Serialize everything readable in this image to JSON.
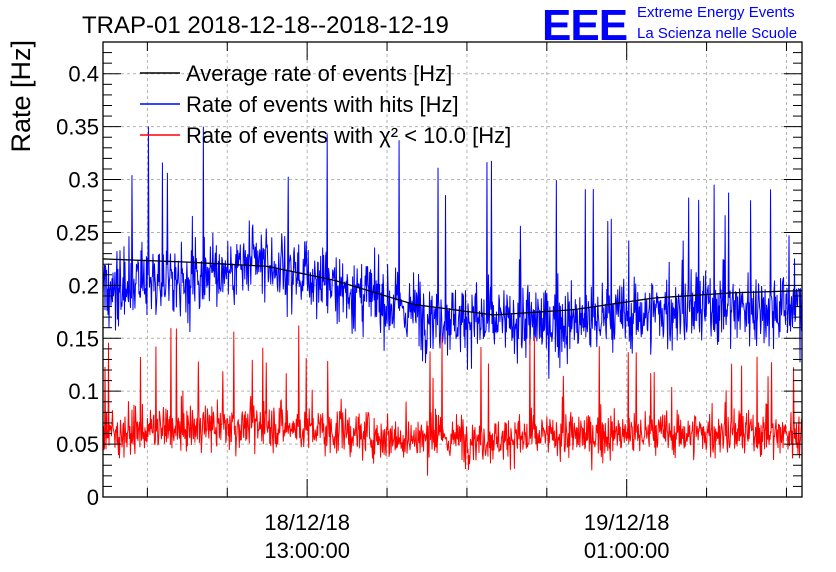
{
  "chart_data": {
    "type": "line",
    "title": "TRAP-01 2018-12-18--2018-12-19",
    "xlabel": "",
    "ylabel": "Rate [Hz]",
    "ylim": [
      0,
      0.43
    ],
    "grid": true,
    "legend_position": "top-left",
    "x_ticks": [
      {
        "date": "18/12/18",
        "time": "13:00:00"
      },
      {
        "date": "19/12/18",
        "time": "01:00:00"
      }
    ],
    "y_ticks": [
      "0",
      "0.05",
      "0.1",
      "0.15",
      "0.2",
      "0.25",
      "0.3",
      "0.35",
      "0.4"
    ],
    "x_range": [
      "2018-12-18 05:20",
      "2018-12-19 07:35"
    ],
    "series": [
      {
        "name": "Average rate of events [Hz]",
        "color": "#000000",
        "x": [
          "2018-12-18 05:20",
          "2018-12-18 08:30",
          "2018-12-18 11:30",
          "2018-12-18 14:00",
          "2018-12-18 17:00",
          "2018-12-18 20:00",
          "2018-12-18 23:00",
          "2018-12-19 02:00",
          "2018-12-19 05:00",
          "2018-12-19 07:35"
        ],
        "values": [
          0.225,
          0.222,
          0.218,
          0.205,
          0.182,
          0.172,
          0.177,
          0.188,
          0.193,
          0.195
        ]
      },
      {
        "name": "Rate of events with hits [Hz]",
        "color": "#0000ff",
        "x": [
          "2018-12-18 05:20",
          "2018-12-18 08:30",
          "2018-12-18 11:30",
          "2018-12-18 14:00",
          "2018-12-18 17:00",
          "2018-12-18 20:00",
          "2018-12-18 23:00",
          "2018-12-19 02:00",
          "2018-12-19 05:00",
          "2018-12-19 07:35"
        ],
        "values": [
          0.19,
          0.21,
          0.22,
          0.2,
          0.175,
          0.165,
          0.165,
          0.175,
          0.18,
          0.18
        ]
      },
      {
        "name": "Rate of events with χ² < 10.0 [Hz]",
        "color": "#ff0000",
        "x": [
          "2018-12-18 05:20",
          "2018-12-18 08:30",
          "2018-12-18 11:30",
          "2018-12-18 14:00",
          "2018-12-18 17:00",
          "2018-12-18 20:00",
          "2018-12-18 23:00",
          "2018-12-19 02:00",
          "2018-12-19 05:00",
          "2018-12-19 07:35"
        ],
        "values": [
          0.06,
          0.065,
          0.068,
          0.062,
          0.055,
          0.055,
          0.058,
          0.06,
          0.06,
          0.06
        ]
      }
    ]
  },
  "logo": {
    "text": "EEE",
    "line1": "Extreme Energy Events",
    "line2": "La Scienza nelle Scuole",
    "color": "#0000ff"
  }
}
